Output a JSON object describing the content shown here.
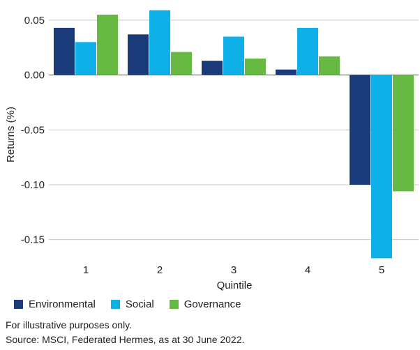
{
  "chart_data": {
    "type": "bar",
    "categories": [
      "1",
      "2",
      "3",
      "4",
      "5"
    ],
    "series": [
      {
        "name": "Environmental",
        "color": "#1b3a7a",
        "values": [
          0.043,
          0.037,
          0.013,
          0.005,
          -0.1
        ]
      },
      {
        "name": "Social",
        "color": "#0fb0e8",
        "values": [
          0.03,
          0.059,
          0.035,
          0.043,
          -0.167
        ]
      },
      {
        "name": "Governance",
        "color": "#67b943",
        "values": [
          0.055,
          0.021,
          0.015,
          0.017,
          -0.106
        ]
      }
    ],
    "xlabel": "Quintile",
    "ylabel": "Returns (%)",
    "ylim": [
      -0.168,
      0.062
    ],
    "yticks": [
      0.05,
      0.0,
      -0.05,
      -0.1,
      -0.15
    ],
    "ytick_labels": [
      "0.05",
      "0.00",
      "-0.05",
      "-0.10",
      "-0.15"
    ],
    "grid": true,
    "legend_position": "bottom-left"
  },
  "legend": {
    "environmental": "Environmental",
    "social": "Social",
    "governance": "Governance"
  },
  "notes": {
    "line1": "For illustrative purposes only.",
    "line2": "Source: MSCI, Federated Hermes, as at 30 June 2022."
  }
}
